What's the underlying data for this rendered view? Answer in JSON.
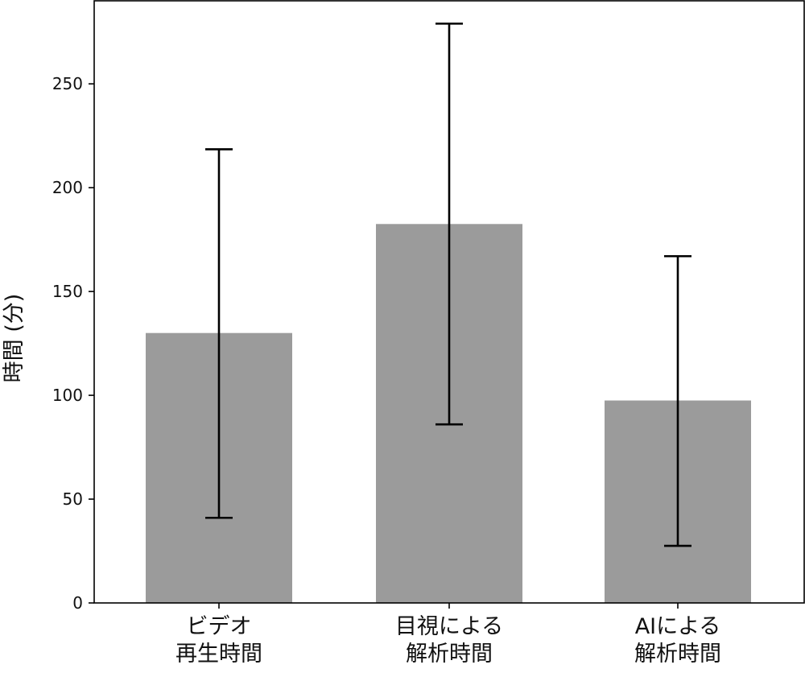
{
  "chart_data": {
    "type": "bar",
    "title": "",
    "xlabel": "",
    "ylabel": "時間 (分)",
    "ylim": [
      0,
      290
    ],
    "yticks": [
      0,
      50,
      100,
      150,
      200,
      250
    ],
    "grid": false,
    "bar_color": "#9b9b9b",
    "error_color": "#000000",
    "categories": [
      [
        "ビデオ",
        "再生時間"
      ],
      [
        "目視による",
        "解析時間"
      ],
      [
        "AIによる",
        "解析時間"
      ]
    ],
    "values": [
      130,
      182.5,
      97.5
    ],
    "error_low": [
      41,
      86,
      27.5
    ],
    "error_high": [
      218.5,
      279,
      167
    ]
  }
}
